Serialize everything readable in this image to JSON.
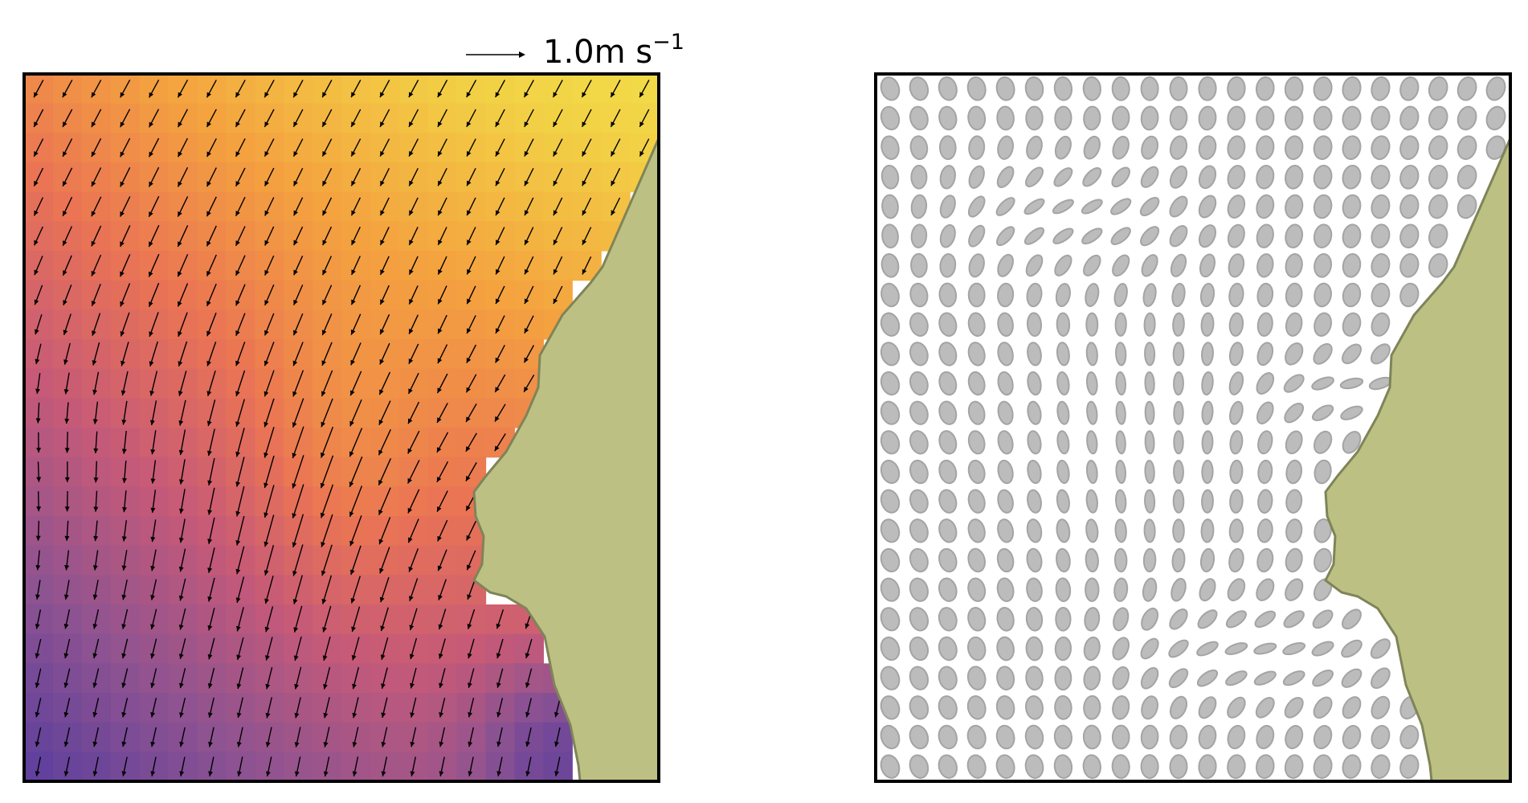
{
  "chart_data": [
    {
      "type": "heatmap",
      "panel": "left",
      "title": "",
      "xlabel": "",
      "ylabel": "",
      "overlay": "quiver",
      "grid_size": [
        22,
        24
      ],
      "colormap": [
        "#5b3f9e",
        "#8f5391",
        "#c65a78",
        "#ea7454",
        "#f4a23f",
        "#f2d245",
        "#f0ea4c"
      ],
      "quiver_key": {
        "label": "1.0m s",
        "superscript": "−1",
        "speed": 1.0
      },
      "land_color": "#bdc083",
      "land_edge_color": "#7f8458",
      "arrow_color": "#000000",
      "axes_frame": "on",
      "ticks": "off"
    },
    {
      "type": "scatter",
      "panel": "right",
      "title": "",
      "xlabel": "",
      "ylabel": "",
      "marker": "ellipse",
      "grid_size": [
        22,
        24
      ],
      "marker_fill": "#bcbcbc",
      "marker_edge": "#a4a4a4",
      "land_color": "#bdc083",
      "land_edge_color": "#7f8458",
      "axes_frame": "on",
      "ticks": "off"
    }
  ]
}
